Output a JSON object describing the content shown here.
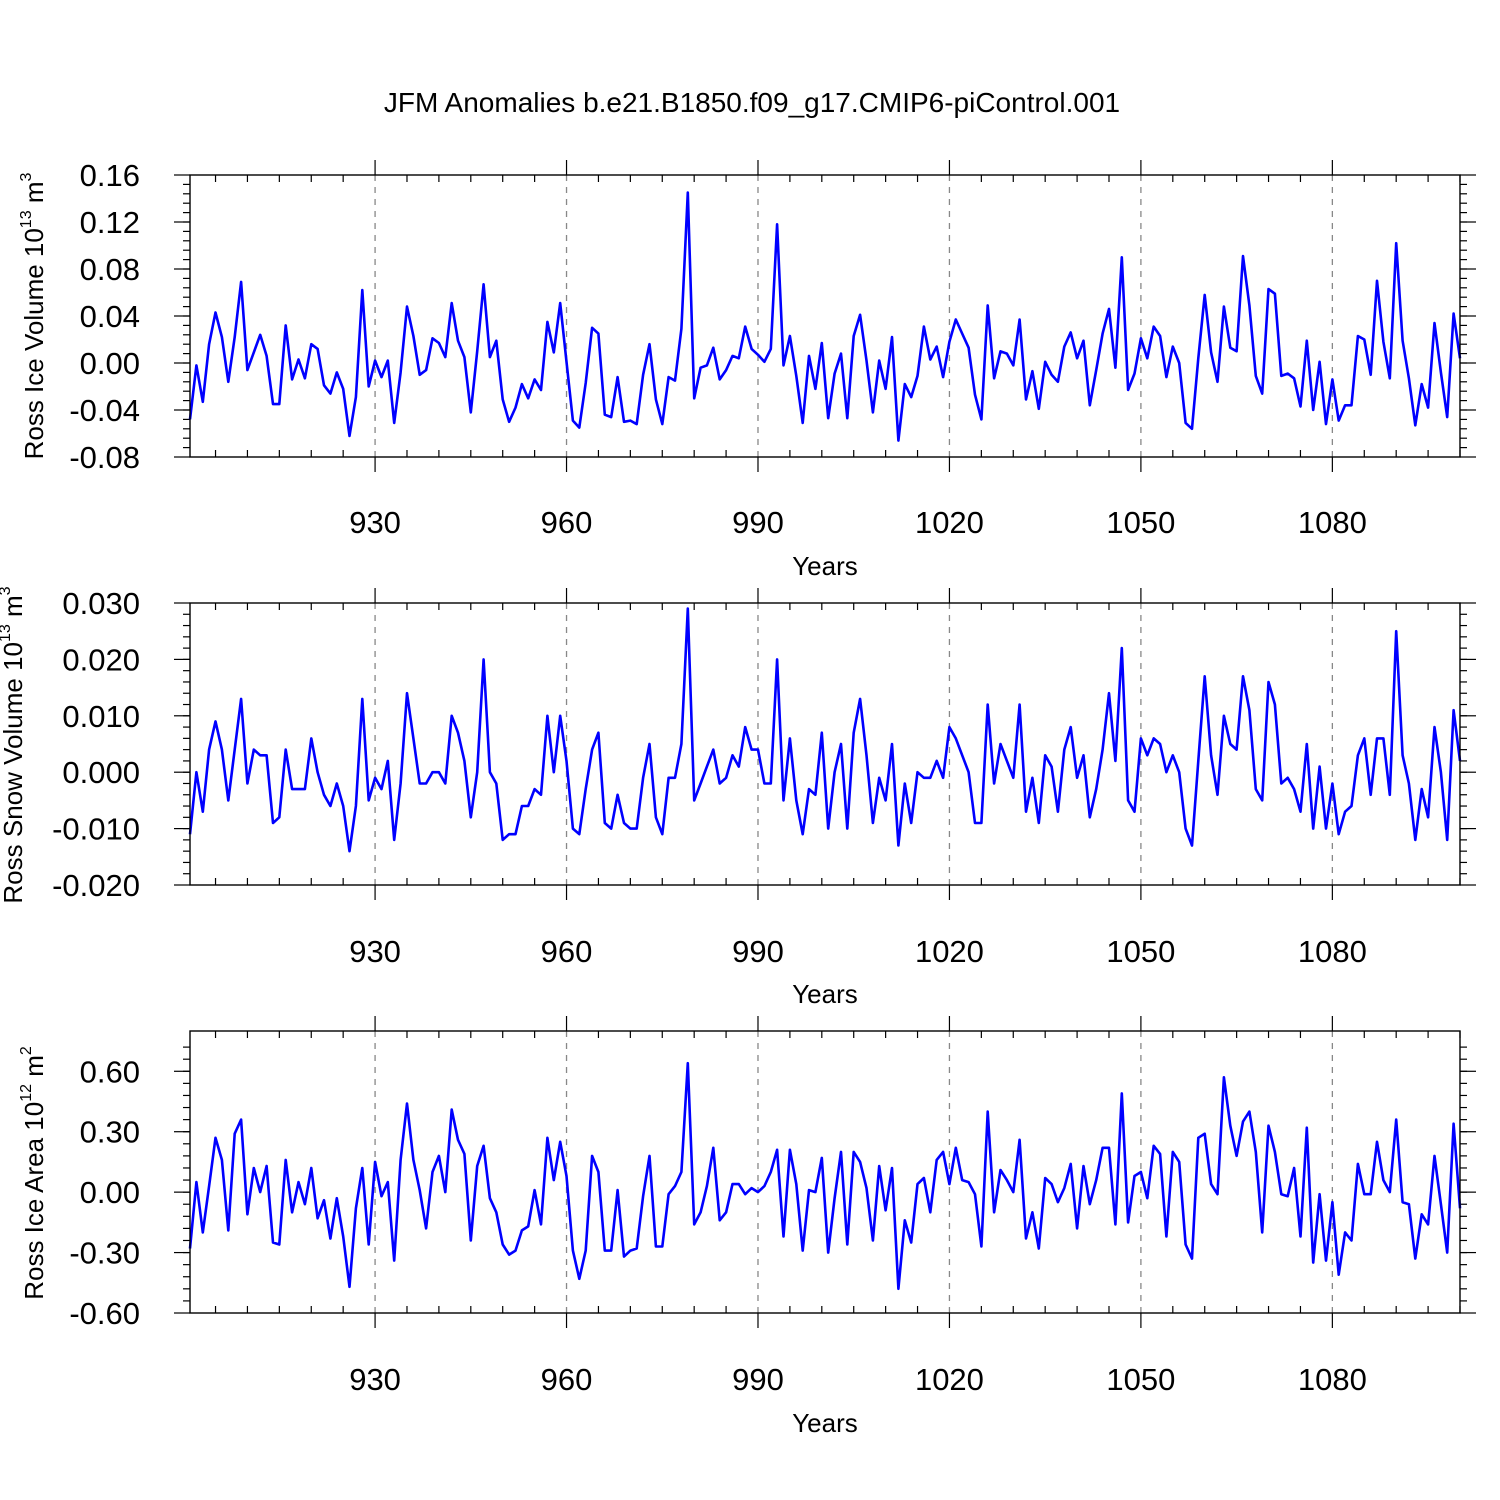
{
  "chart_data": {
    "type": "line",
    "title": "JFM Anomalies b.e21.B1850.f09_g17.CMIP6-piControl.001",
    "line_color": "#0000ff",
    "x_start": 901,
    "x_step": 1,
    "xlim": [
      901,
      1100
    ],
    "x_ticks": [
      930,
      960,
      990,
      1020,
      1050,
      1080
    ],
    "x_tick_labels": [
      "930",
      "960",
      "990",
      "1020",
      "1050",
      "1080"
    ],
    "xlabel": "Years",
    "grid": "dashed vertical lines at major x ticks",
    "panels": [
      {
        "name": "ross-ice-volume",
        "ylabel_main": "Ross Ice Volume 10",
        "ylabel_exp": "13",
        "ylabel_unit": " m",
        "ylabel_unit_exp": "3",
        "ylim": [
          -0.08,
          0.16
        ],
        "y_ticks": [
          -0.08,
          -0.04,
          0.0,
          0.04,
          0.08,
          0.12,
          0.16
        ],
        "y_tick_labels": [
          "-0.08",
          "-0.04",
          "0.00",
          "0.04",
          "0.08",
          "0.12",
          "0.16"
        ],
        "y_minor_step": 0.008,
        "values": [
          -0.048,
          -0.002,
          -0.033,
          0.016,
          0.043,
          0.022,
          -0.016,
          0.022,
          0.069,
          -0.006,
          0.009,
          0.024,
          0.006,
          -0.035,
          -0.035,
          0.032,
          -0.014,
          0.003,
          -0.013,
          0.016,
          0.012,
          -0.019,
          -0.026,
          -0.008,
          -0.022,
          -0.062,
          -0.029,
          0.062,
          -0.02,
          0.002,
          -0.012,
          0.002,
          -0.051,
          -0.008,
          0.048,
          0.023,
          -0.01,
          -0.006,
          0.021,
          0.017,
          0.005,
          0.051,
          0.019,
          0.005,
          -0.042,
          0.01,
          0.067,
          0.005,
          0.019,
          -0.031,
          -0.05,
          -0.038,
          -0.018,
          -0.03,
          -0.014,
          -0.023,
          0.035,
          0.009,
          0.051,
          0.001,
          -0.049,
          -0.055,
          -0.017,
          0.03,
          0.025,
          -0.044,
          -0.046,
          -0.012,
          -0.05,
          -0.049,
          -0.052,
          -0.01,
          0.016,
          -0.031,
          -0.052,
          -0.012,
          -0.015,
          0.029,
          0.145,
          -0.03,
          -0.004,
          -0.002,
          0.013,
          -0.014,
          -0.006,
          0.006,
          0.004,
          0.031,
          0.012,
          0.007,
          0.001,
          0.012,
          0.118,
          -0.002,
          0.023,
          -0.011,
          -0.051,
          0.006,
          -0.022,
          0.017,
          -0.047,
          -0.009,
          0.008,
          -0.047,
          0.023,
          0.041,
          0.002,
          -0.042,
          0.002,
          -0.022,
          0.022,
          -0.066,
          -0.018,
          -0.029,
          -0.011,
          0.031,
          0.003,
          0.014,
          -0.012,
          0.018,
          0.037,
          0.025,
          0.013,
          -0.027,
          -0.048,
          0.049,
          -0.013,
          0.01,
          0.008,
          -0.002,
          0.037,
          -0.031,
          -0.007,
          -0.039,
          0.001,
          -0.01,
          -0.016,
          0.014,
          0.026,
          0.004,
          0.019,
          -0.036,
          -0.006,
          0.025,
          0.046,
          -0.004,
          0.09,
          -0.023,
          -0.009,
          0.021,
          0.004,
          0.031,
          0.023,
          -0.012,
          0.014,
          0.0,
          -0.051,
          -0.056,
          0.004,
          0.058,
          0.009,
          -0.016,
          0.048,
          0.013,
          0.01,
          0.091,
          0.049,
          -0.011,
          -0.026,
          0.063,
          0.059,
          -0.011,
          -0.009,
          -0.013,
          -0.037,
          0.019,
          -0.04,
          0.001,
          -0.052,
          -0.014,
          -0.049,
          -0.036,
          -0.036,
          0.023,
          0.02,
          -0.01,
          0.07,
          0.018,
          -0.013,
          0.102,
          0.019,
          -0.013,
          -0.053,
          -0.018,
          -0.038,
          0.034,
          -0.008,
          -0.046,
          0.042,
          0.004
        ]
      },
      {
        "name": "ross-snow-volume",
        "ylabel_main": "Ross Snow Volume 10",
        "ylabel_exp": "13",
        "ylabel_unit": " m",
        "ylabel_unit_exp": "3",
        "ylim": [
          -0.02,
          0.03
        ],
        "y_ticks": [
          -0.02,
          -0.01,
          0.0,
          0.01,
          0.02,
          0.03
        ],
        "y_tick_labels": [
          "-0.020",
          "-0.010",
          "0.000",
          "0.010",
          "0.020",
          "0.030"
        ],
        "y_minor_step": 0.002,
        "values": [
          -0.011,
          0.0,
          -0.007,
          0.004,
          0.009,
          0.004,
          -0.005,
          0.004,
          0.013,
          -0.002,
          0.004,
          0.003,
          0.003,
          -0.009,
          -0.008,
          0.004,
          -0.003,
          -0.003,
          -0.003,
          0.006,
          0.0,
          -0.004,
          -0.006,
          -0.002,
          -0.006,
          -0.014,
          -0.006,
          0.013,
          -0.005,
          -0.001,
          -0.003,
          0.002,
          -0.012,
          -0.002,
          0.014,
          0.006,
          -0.002,
          -0.002,
          0.0,
          0.0,
          -0.002,
          0.01,
          0.007,
          0.002,
          -0.008,
          0.0,
          0.02,
          0.0,
          -0.002,
          -0.012,
          -0.011,
          -0.011,
          -0.006,
          -0.006,
          -0.003,
          -0.004,
          0.01,
          0.0,
          0.01,
          0.002,
          -0.01,
          -0.011,
          -0.003,
          0.004,
          0.007,
          -0.009,
          -0.01,
          -0.004,
          -0.009,
          -0.01,
          -0.01,
          -0.001,
          0.005,
          -0.008,
          -0.011,
          -0.001,
          -0.001,
          0.005,
          0.029,
          -0.005,
          -0.002,
          0.001,
          0.004,
          -0.002,
          -0.001,
          0.003,
          0.001,
          0.008,
          0.004,
          0.004,
          -0.002,
          -0.002,
          0.02,
          -0.005,
          0.006,
          -0.005,
          -0.011,
          -0.003,
          -0.004,
          0.007,
          -0.01,
          0.0,
          0.005,
          -0.01,
          0.007,
          0.013,
          0.003,
          -0.009,
          -0.001,
          -0.005,
          0.005,
          -0.013,
          -0.002,
          -0.009,
          0.0,
          -0.001,
          -0.001,
          0.002,
          -0.001,
          0.008,
          0.006,
          0.003,
          0.0,
          -0.009,
          -0.009,
          0.012,
          -0.002,
          0.005,
          0.002,
          -0.001,
          0.012,
          -0.007,
          -0.001,
          -0.009,
          0.003,
          0.001,
          -0.007,
          0.004,
          0.008,
          -0.001,
          0.003,
          -0.008,
          -0.003,
          0.004,
          0.014,
          0.002,
          0.022,
          -0.005,
          -0.007,
          0.006,
          0.003,
          0.006,
          0.005,
          0.0,
          0.003,
          0.0,
          -0.01,
          -0.013,
          0.002,
          0.017,
          0.003,
          -0.004,
          0.01,
          0.005,
          0.004,
          0.017,
          0.011,
          -0.003,
          -0.005,
          0.016,
          0.012,
          -0.002,
          -0.001,
          -0.003,
          -0.007,
          0.005,
          -0.01,
          0.001,
          -0.01,
          -0.002,
          -0.011,
          -0.007,
          -0.006,
          0.003,
          0.006,
          -0.004,
          0.006,
          0.006,
          -0.004,
          0.025,
          0.003,
          -0.002,
          -0.012,
          -0.003,
          -0.008,
          0.008,
          0.0,
          -0.012,
          0.011,
          0.002
        ]
      },
      {
        "name": "ross-ice-area",
        "ylabel_main": "Ross Ice Area 10",
        "ylabel_exp": "12",
        "ylabel_unit": " m",
        "ylabel_unit_exp": "2",
        "ylim": [
          -0.6,
          0.8
        ],
        "y_ticks": [
          -0.6,
          -0.3,
          0.0,
          0.3,
          0.6
        ],
        "y_tick_labels": [
          "-0.60",
          "-0.30",
          "0.00",
          "0.30",
          "0.60"
        ],
        "y_minor_step": 0.06,
        "values": [
          -0.28,
          0.05,
          -0.2,
          0.03,
          0.27,
          0.16,
          -0.19,
          0.29,
          0.36,
          -0.11,
          0.12,
          0.0,
          0.13,
          -0.25,
          -0.26,
          0.16,
          -0.1,
          0.05,
          -0.06,
          0.12,
          -0.13,
          -0.04,
          -0.23,
          -0.03,
          -0.22,
          -0.47,
          -0.08,
          0.12,
          -0.26,
          0.15,
          -0.02,
          0.05,
          -0.34,
          0.16,
          0.44,
          0.16,
          0.01,
          -0.18,
          0.1,
          0.18,
          0.0,
          0.41,
          0.26,
          0.19,
          -0.24,
          0.13,
          0.23,
          -0.03,
          -0.1,
          -0.26,
          -0.31,
          -0.29,
          -0.19,
          -0.17,
          0.01,
          -0.16,
          0.27,
          0.06,
          0.25,
          0.08,
          -0.29,
          -0.43,
          -0.29,
          0.18,
          0.1,
          -0.29,
          -0.29,
          0.01,
          -0.32,
          -0.29,
          -0.28,
          -0.02,
          0.18,
          -0.27,
          -0.27,
          -0.01,
          0.03,
          0.1,
          0.64,
          -0.16,
          -0.1,
          0.03,
          0.22,
          -0.14,
          -0.1,
          0.04,
          0.04,
          -0.01,
          0.02,
          0.0,
          0.03,
          0.1,
          0.21,
          -0.22,
          0.21,
          0.04,
          -0.29,
          0.01,
          0.0,
          0.17,
          -0.3,
          -0.03,
          0.2,
          -0.26,
          0.2,
          0.15,
          0.02,
          -0.24,
          0.13,
          -0.09,
          0.12,
          -0.48,
          -0.14,
          -0.25,
          0.04,
          0.07,
          -0.1,
          0.16,
          0.2,
          0.04,
          0.22,
          0.06,
          0.05,
          -0.01,
          -0.27,
          0.4,
          -0.1,
          0.11,
          0.06,
          0.0,
          0.26,
          -0.23,
          -0.1,
          -0.28,
          0.07,
          0.04,
          -0.05,
          0.02,
          0.14,
          -0.18,
          0.13,
          -0.06,
          0.06,
          0.22,
          0.22,
          -0.16,
          0.49,
          -0.15,
          0.08,
          0.1,
          -0.03,
          0.23,
          0.19,
          -0.22,
          0.2,
          0.15,
          -0.26,
          -0.33,
          0.27,
          0.29,
          0.04,
          -0.01,
          0.57,
          0.33,
          0.18,
          0.35,
          0.4,
          0.2,
          -0.2,
          0.33,
          0.2,
          -0.01,
          -0.02,
          0.12,
          -0.22,
          0.32,
          -0.35,
          -0.01,
          -0.34,
          -0.05,
          -0.41,
          -0.2,
          -0.24,
          0.14,
          -0.01,
          -0.01,
          0.25,
          0.06,
          0.0,
          0.36,
          -0.05,
          -0.06,
          -0.33,
          -0.11,
          -0.16,
          0.18,
          -0.06,
          -0.3,
          0.34,
          -0.08
        ]
      }
    ]
  }
}
